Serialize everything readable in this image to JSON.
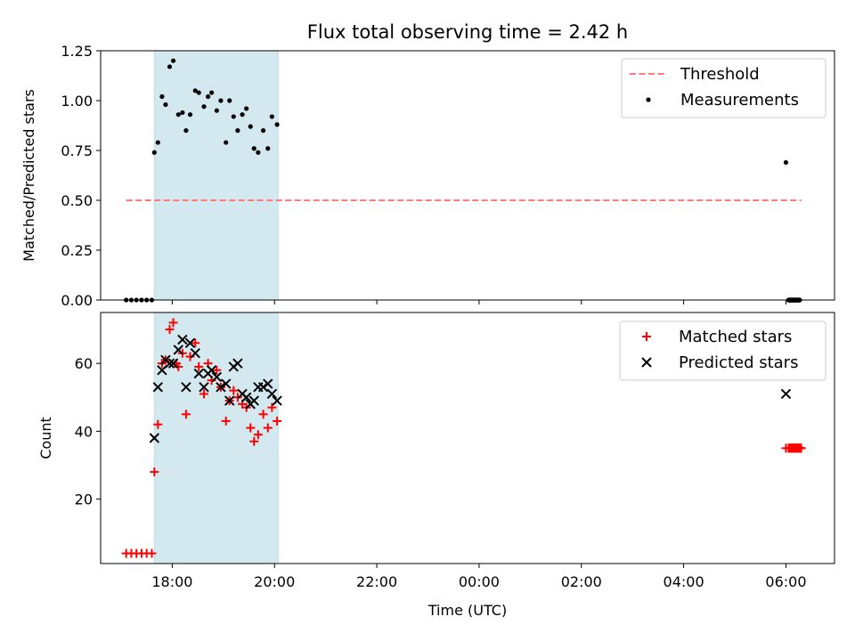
{
  "chart_data": [
    {
      "type": "scatter",
      "title": "Flux total observing time = 2.42 h",
      "xlabel": "",
      "ylabel": "Matched/Predicted stars",
      "xlim": [
        16.6,
        30.95
      ],
      "ylim": [
        0,
        1.25
      ],
      "yticks": [
        0.0,
        0.25,
        0.5,
        0.75,
        1.0,
        1.25
      ],
      "ytick_labels": [
        "0.00",
        "0.25",
        "0.50",
        "0.75",
        "1.00",
        "1.25"
      ],
      "shaded_interval": [
        17.65,
        20.07
      ],
      "shade_color": "#d3e9ef",
      "legend_position": "upper right",
      "series": [
        {
          "name": "Threshold",
          "style": "dashed-line",
          "color": "#ff7b7b",
          "x": [
            17.1,
            30.3
          ],
          "y": [
            0.5,
            0.5
          ]
        },
        {
          "name": "Measurements",
          "style": "dot",
          "color": "#000000",
          "x": [
            17.1,
            17.2,
            17.3,
            17.4,
            17.5,
            17.6,
            17.65,
            17.72,
            17.8,
            17.87,
            17.95,
            18.02,
            18.12,
            18.2,
            18.27,
            18.35,
            18.45,
            18.52,
            18.62,
            18.7,
            18.77,
            18.87,
            18.95,
            19.05,
            19.12,
            19.2,
            19.28,
            19.37,
            19.45,
            19.53,
            19.6,
            19.68,
            19.78,
            19.87,
            19.95,
            20.05,
            30.0
          ],
          "y": [
            0,
            0,
            0,
            0,
            0,
            0,
            0.74,
            0.79,
            1.02,
            0.98,
            1.17,
            1.2,
            0.93,
            0.94,
            0.85,
            0.93,
            1.05,
            1.04,
            0.97,
            1.02,
            1.04,
            0.95,
            1.0,
            0.79,
            1.0,
            0.92,
            0.85,
            0.93,
            0.96,
            0.87,
            0.76,
            0.74,
            0.85,
            0.76,
            0.92,
            0.88,
            0.69
          ],
          "flat_x_start": 30.05,
          "flat_x_end": 30.27,
          "flat_count": 58,
          "flat_y": 0
        }
      ]
    },
    {
      "type": "scatter",
      "title": "",
      "xlabel": "Time (UTC)",
      "ylabel": "Count",
      "xlim": [
        16.6,
        30.95
      ],
      "ylim": [
        1,
        75
      ],
      "yticks": [
        20,
        40,
        60
      ],
      "ytick_labels": [
        "20",
        "40",
        "60"
      ],
      "xticks": [
        18,
        20,
        22,
        24,
        26,
        28,
        30
      ],
      "xtick_labels": [
        "18:00",
        "20:00",
        "22:00",
        "00:00",
        "02:00",
        "04:00",
        "06:00"
      ],
      "shaded_interval": [
        17.65,
        20.07
      ],
      "shade_color": "#d3e9ef",
      "legend_position": "upper right",
      "series": [
        {
          "name": "Matched stars",
          "marker": "plus",
          "color": "#ff0000",
          "x": [
            17.1,
            17.2,
            17.3,
            17.4,
            17.5,
            17.6,
            17.65,
            17.72,
            17.8,
            17.87,
            17.95,
            18.02,
            18.08,
            18.12,
            18.2,
            18.27,
            18.35,
            18.45,
            18.52,
            18.62,
            18.7,
            18.77,
            18.87,
            18.95,
            19.05,
            19.12,
            19.2,
            19.28,
            19.37,
            19.45,
            19.53,
            19.6,
            19.68,
            19.78,
            19.87,
            19.95,
            20.05,
            30.0
          ],
          "y": [
            4,
            4,
            4,
            4,
            4,
            4,
            28,
            42,
            60,
            61,
            70,
            72,
            60,
            59,
            63,
            45,
            62,
            66,
            59,
            51,
            60,
            55,
            58,
            53,
            43,
            49,
            52,
            50,
            48,
            47,
            41,
            37,
            39,
            45,
            41,
            47,
            43,
            35
          ],
          "flat_x_start": 30.05,
          "flat_x_end": 30.3,
          "flat_count": 58,
          "flat_y": 35
        },
        {
          "name": "Predicted stars",
          "marker": "x",
          "color": "#000000",
          "x": [
            17.65,
            17.72,
            17.8,
            17.87,
            17.95,
            18.02,
            18.12,
            18.2,
            18.27,
            18.35,
            18.45,
            18.52,
            18.62,
            18.7,
            18.77,
            18.87,
            18.95,
            19.05,
            19.12,
            19.2,
            19.28,
            19.37,
            19.45,
            19.53,
            19.6,
            19.68,
            19.78,
            19.87,
            19.95,
            20.05,
            30.0
          ],
          "y": [
            38,
            53,
            58,
            61,
            60,
            60,
            64,
            67,
            53,
            66,
            63,
            57,
            53,
            57,
            58,
            56,
            53,
            54,
            49,
            59,
            60,
            51,
            50,
            48,
            49,
            53,
            53,
            54,
            51,
            49,
            51
          ]
        }
      ]
    }
  ]
}
